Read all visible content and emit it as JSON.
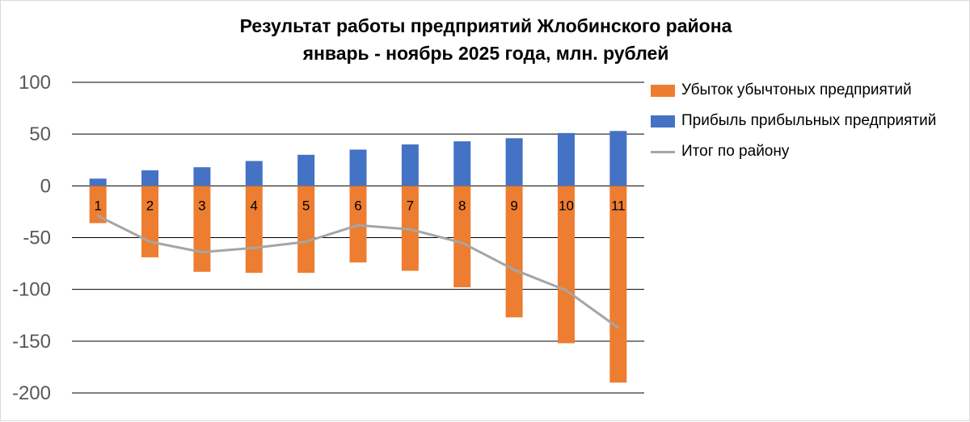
{
  "chart_data": {
    "type": "bar",
    "title": "Результат работы предприятий Жлобинского района",
    "subtitle": "январь - ноябрь 2025 года, млн. рублей",
    "categories": [
      "1",
      "2",
      "3",
      "4",
      "5",
      "6",
      "7",
      "8",
      "9",
      "10",
      "11"
    ],
    "series": [
      {
        "name": "Убыток убычтоных предприятий",
        "type": "bar",
        "color": "#ed7d31",
        "values": [
          -36,
          -69,
          -83,
          -84,
          -84,
          -74,
          -82,
          -98,
          -127,
          -152,
          -190
        ]
      },
      {
        "name": "Прибыль прибыльных предприятий",
        "type": "bar",
        "color": "#4472c4",
        "values": [
          7,
          15,
          18,
          24,
          30,
          35,
          40,
          43,
          46,
          51,
          53
        ]
      },
      {
        "name": "Итог по району",
        "type": "line",
        "color": "#a5a5a5",
        "values": [
          -29,
          -54,
          -64,
          -60,
          -54,
          -38,
          -42,
          -55,
          -81,
          -101,
          -137
        ]
      }
    ],
    "yticks": [
      "100",
      "50",
      "0",
      "-50",
      "-100",
      "-150",
      "-200"
    ],
    "ylim": [
      -200,
      100
    ],
    "grid": true,
    "legend": "right"
  }
}
